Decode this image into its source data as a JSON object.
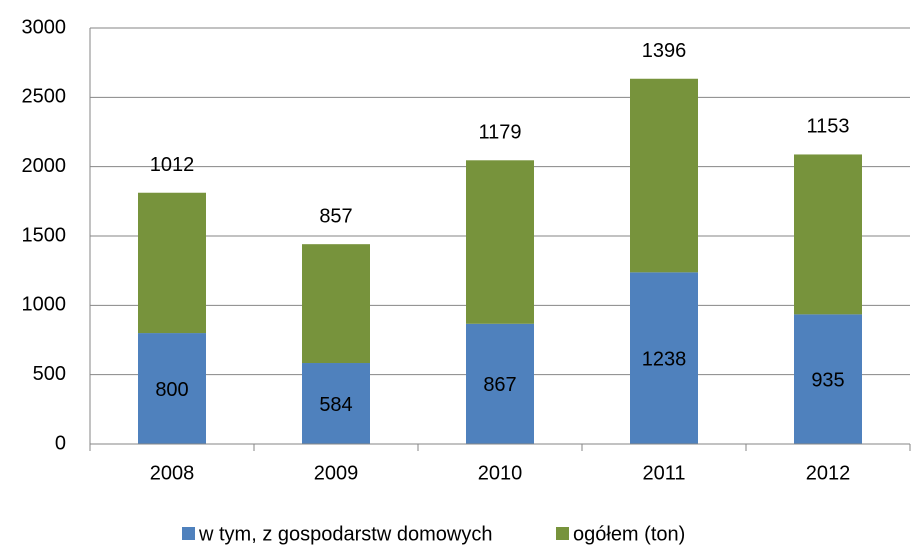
{
  "chart_data": {
    "type": "stacked_bar",
    "categories": [
      "2008",
      "2009",
      "2010",
      "2011",
      "2012"
    ],
    "series": [
      {
        "name": "w tym, z gospodarstw domowych",
        "color": "#4f81bd",
        "values": [
          800,
          584,
          867,
          1238,
          935
        ]
      },
      {
        "name": "ogółem (ton)",
        "color": "#77933c",
        "values": [
          1012,
          857,
          1179,
          1396,
          1153
        ]
      }
    ],
    "ylim": [
      0,
      3000
    ],
    "yticks": [
      0,
      500,
      1000,
      1500,
      2000,
      2500,
      3000
    ],
    "grid": true,
    "legend": "bottom"
  }
}
